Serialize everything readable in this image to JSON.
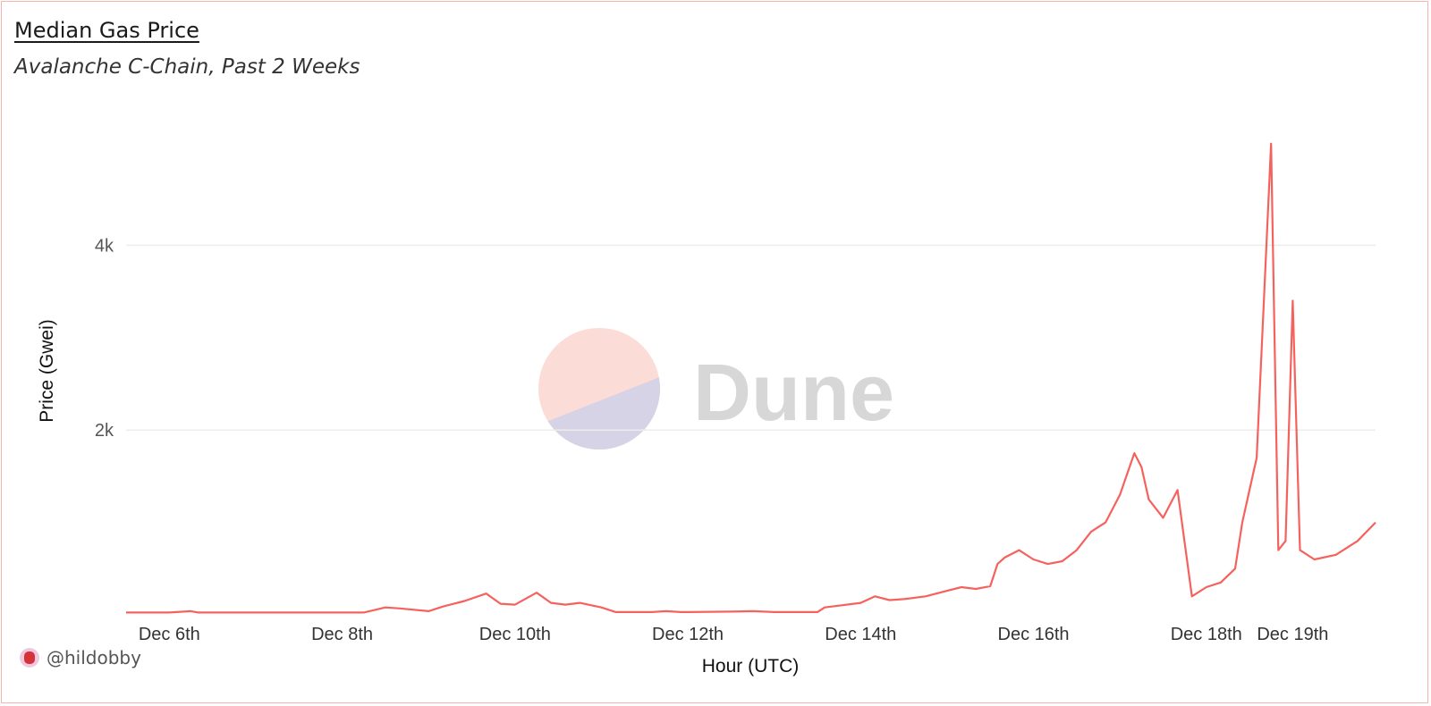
{
  "header": {
    "title": "Median Gas Price",
    "subtitle": "Avalanche C-Chain, Past 2 Weeks"
  },
  "footer": {
    "author": "@hildobby"
  },
  "watermark": {
    "text": "Dune"
  },
  "colors": {
    "line": "#f5625d",
    "grid": "#ececec",
    "watermark_top": "#fbdcd6",
    "watermark_bottom": "#d6d3e6",
    "watermark_text": "#d7d7d7"
  },
  "chart_data": {
    "type": "line",
    "title": "Median Gas Price",
    "subtitle": "Avalanche C-Chain, Past 2 Weeks",
    "xlabel": "Hour (UTC)",
    "ylabel": "Price (Gwei)",
    "x_range": [
      "2023-12-05 12:00",
      "2023-12-19 23:00"
    ],
    "ylim": [
      0,
      5300
    ],
    "y_ticks": [
      {
        "value": 2000,
        "label": "2k"
      },
      {
        "value": 4000,
        "label": "4k"
      }
    ],
    "x_ticks": [
      {
        "value": "2023-12-06 00:00",
        "label": "Dec 6th"
      },
      {
        "value": "2023-12-08 00:00",
        "label": "Dec 8th"
      },
      {
        "value": "2023-12-10 00:00",
        "label": "Dec 10th"
      },
      {
        "value": "2023-12-12 00:00",
        "label": "Dec 12th"
      },
      {
        "value": "2023-12-14 00:00",
        "label": "Dec 14th"
      },
      {
        "value": "2023-12-16 00:00",
        "label": "Dec 16th"
      },
      {
        "value": "2023-12-18 00:00",
        "label": "Dec 18th"
      },
      {
        "value": "2023-12-19 00:00",
        "label": "Dec 19th"
      }
    ],
    "grid": true,
    "legend": "none",
    "series": [
      {
        "points": [
          [
            "2023-12-05 12:00",
            25
          ],
          [
            "2023-12-06 00:00",
            25
          ],
          [
            "2023-12-06 06:00",
            40
          ],
          [
            "2023-12-06 08:00",
            25
          ],
          [
            "2023-12-07 00:00",
            25
          ],
          [
            "2023-12-08 00:00",
            25
          ],
          [
            "2023-12-08 06:00",
            25
          ],
          [
            "2023-12-08 12:00",
            80
          ],
          [
            "2023-12-08 16:00",
            70
          ],
          [
            "2023-12-09 00:00",
            40
          ],
          [
            "2023-12-09 04:00",
            90
          ],
          [
            "2023-12-09 10:00",
            150
          ],
          [
            "2023-12-09 16:00",
            230
          ],
          [
            "2023-12-09 20:00",
            120
          ],
          [
            "2023-12-10 00:00",
            110
          ],
          [
            "2023-12-10 06:00",
            240
          ],
          [
            "2023-12-10 10:00",
            130
          ],
          [
            "2023-12-10 14:00",
            110
          ],
          [
            "2023-12-10 18:00",
            130
          ],
          [
            "2023-12-11 00:00",
            80
          ],
          [
            "2023-12-11 04:00",
            30
          ],
          [
            "2023-12-11 14:00",
            30
          ],
          [
            "2023-12-11 18:00",
            40
          ],
          [
            "2023-12-11 22:00",
            30
          ],
          [
            "2023-12-12 00:00",
            30
          ],
          [
            "2023-12-12 12:00",
            35
          ],
          [
            "2023-12-12 18:00",
            40
          ],
          [
            "2023-12-13 00:00",
            30
          ],
          [
            "2023-12-13 06:00",
            30
          ],
          [
            "2023-12-13 12:00",
            30
          ],
          [
            "2023-12-13 14:00",
            80
          ],
          [
            "2023-12-13 18:00",
            100
          ],
          [
            "2023-12-14 00:00",
            130
          ],
          [
            "2023-12-14 04:00",
            200
          ],
          [
            "2023-12-14 08:00",
            160
          ],
          [
            "2023-12-14 12:00",
            170
          ],
          [
            "2023-12-14 18:00",
            200
          ],
          [
            "2023-12-15 00:00",
            260
          ],
          [
            "2023-12-15 04:00",
            300
          ],
          [
            "2023-12-15 08:00",
            280
          ],
          [
            "2023-12-15 12:00",
            310
          ],
          [
            "2023-12-15 14:00",
            550
          ],
          [
            "2023-12-15 16:00",
            620
          ],
          [
            "2023-12-15 20:00",
            700
          ],
          [
            "2023-12-16 00:00",
            600
          ],
          [
            "2023-12-16 04:00",
            550
          ],
          [
            "2023-12-16 08:00",
            580
          ],
          [
            "2023-12-16 12:00",
            700
          ],
          [
            "2023-12-16 16:00",
            900
          ],
          [
            "2023-12-16 20:00",
            1000
          ],
          [
            "2023-12-17 00:00",
            1300
          ],
          [
            "2023-12-17 04:00",
            1750
          ],
          [
            "2023-12-17 06:00",
            1600
          ],
          [
            "2023-12-17 08:00",
            1250
          ],
          [
            "2023-12-17 12:00",
            1050
          ],
          [
            "2023-12-17 16:00",
            1350
          ],
          [
            "2023-12-17 20:00",
            200
          ],
          [
            "2023-12-18 00:00",
            300
          ],
          [
            "2023-12-18 04:00",
            350
          ],
          [
            "2023-12-18 08:00",
            500
          ],
          [
            "2023-12-18 10:00",
            1000
          ],
          [
            "2023-12-18 14:00",
            1700
          ],
          [
            "2023-12-18 18:00",
            5100
          ],
          [
            "2023-12-18 20:00",
            700
          ],
          [
            "2023-12-18 22:00",
            800
          ],
          [
            "2023-12-19 00:00",
            3400
          ],
          [
            "2023-12-19 02:00",
            700
          ],
          [
            "2023-12-19 06:00",
            600
          ],
          [
            "2023-12-19 12:00",
            650
          ],
          [
            "2023-12-19 18:00",
            800
          ],
          [
            "2023-12-19 23:00",
            1000
          ]
        ]
      }
    ]
  }
}
